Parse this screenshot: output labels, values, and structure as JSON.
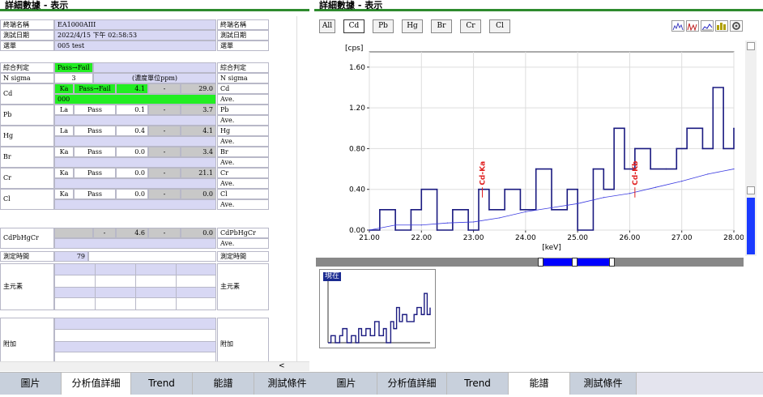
{
  "left_panel": {
    "title": "詳細數據 - 表示"
  },
  "right_panel": {
    "title": "詳細數據 - 表示"
  },
  "info": {
    "terminal_label": "終端名稱",
    "terminal_value": "EA1000AIII",
    "date_label": "測試日期",
    "date_value": "2022/4/15 下午 02:58:53",
    "list_label": "選單",
    "list_value": "005 test"
  },
  "summary": {
    "label": "綜合判定",
    "value": "Pass→Fail",
    "right_label": "綜合判定"
  },
  "nsigma": {
    "label": "N sigma",
    "value": "3",
    "unit": "(濃度單位ppm)",
    "right_label": "N sigma"
  },
  "ave_label": "Ave.",
  "elements": [
    {
      "name": "Cd",
      "line": "Ka",
      "result": "Pass→Fail",
      "value": "4.1",
      "dash": "-",
      "limit": "29.0",
      "extra": "000"
    },
    {
      "name": "Pb",
      "line": "La",
      "result": "Pass",
      "value": "0.1",
      "dash": "-",
      "limit": "3.7"
    },
    {
      "name": "Hg",
      "line": "La",
      "result": "Pass",
      "value": "0.4",
      "dash": "-",
      "limit": "4.1"
    },
    {
      "name": "Br",
      "line": "Ka",
      "result": "Pass",
      "value": "0.0",
      "dash": "-",
      "limit": "3.4"
    },
    {
      "name": "Cr",
      "line": "Ka",
      "result": "Pass",
      "value": "0.0",
      "dash": "-",
      "limit": "21.1"
    },
    {
      "name": "Cl",
      "line": "Ka",
      "result": "Pass",
      "value": "0.0",
      "dash": "-",
      "limit": "0.0"
    }
  ],
  "cdpbhgcr": {
    "name": "CdPbHgCr",
    "dash": "-",
    "value": "4.6",
    "dash2": "-",
    "limit": "0.0"
  },
  "measure": {
    "label": "測定時間",
    "value": "79",
    "right_label": "測定時間"
  },
  "main_elem": {
    "label": "主元素",
    "right_label": "主元素"
  },
  "add": {
    "label": "附加",
    "right_label": "附加"
  },
  "element_buttons": [
    "All",
    "Cd",
    "Pb",
    "Hg",
    "Br",
    "Cr",
    "Cl"
  ],
  "tabs_left": [
    "圖片",
    "分析值詳細",
    "Trend",
    "能譜",
    "測試條件"
  ],
  "tabs_right": [
    "圖片",
    "分析值詳細",
    "Trend",
    "能譜",
    "測試條件"
  ],
  "thumbnail": {
    "label": "現在"
  },
  "colors": {
    "title_line": "#2e8b2e",
    "spectrum": "#1a1a80",
    "average": "#3a3ae0",
    "marker": "#e02020",
    "overview_sel": "#0000ff"
  },
  "chart_data": {
    "type": "line",
    "ylabel": "[cps]",
    "xlabel": "[keV]",
    "xlim": [
      21.0,
      28.0
    ],
    "ylim": [
      0.0,
      1.75
    ],
    "x_ticks": [
      "21.00",
      "22.00",
      "23.00",
      "24.00",
      "25.00",
      "26.00",
      "27.00",
      "28.00"
    ],
    "y_ticks": [
      "0.00",
      "0.40",
      "0.80",
      "1.20",
      "1.60"
    ],
    "markers": [
      {
        "label": "Cd-Ka",
        "x": 23.17
      },
      {
        "label": "Cd-Kb",
        "x": 26.1
      }
    ],
    "series": [
      {
        "values": [
          [
            21.0,
            0.0
          ],
          [
            21.2,
            0.2
          ],
          [
            21.5,
            0.0
          ],
          [
            21.8,
            0.2
          ],
          [
            22.0,
            0.4
          ],
          [
            22.3,
            0.0
          ],
          [
            22.6,
            0.2
          ],
          [
            22.9,
            0.0
          ],
          [
            23.1,
            0.4
          ],
          [
            23.3,
            0.2
          ],
          [
            23.6,
            0.4
          ],
          [
            23.9,
            0.2
          ],
          [
            24.2,
            0.6
          ],
          [
            24.5,
            0.2
          ],
          [
            24.8,
            0.4
          ],
          [
            25.0,
            0.0
          ],
          [
            25.3,
            0.6
          ],
          [
            25.5,
            0.4
          ],
          [
            25.7,
            1.0
          ],
          [
            25.9,
            0.6
          ],
          [
            26.1,
            0.8
          ],
          [
            26.4,
            0.6
          ],
          [
            26.7,
            0.6
          ],
          [
            26.9,
            0.8
          ],
          [
            27.1,
            1.0
          ],
          [
            27.4,
            0.8
          ],
          [
            27.6,
            1.4
          ],
          [
            27.8,
            0.8
          ],
          [
            28.0,
            1.0
          ]
        ]
      },
      {
        "values": [
          [
            21.0,
            0.0
          ],
          [
            21.5,
            0.05
          ],
          [
            22.0,
            0.05
          ],
          [
            22.5,
            0.07
          ],
          [
            23.0,
            0.08
          ],
          [
            23.5,
            0.12
          ],
          [
            24.0,
            0.18
          ],
          [
            24.5,
            0.22
          ],
          [
            25.0,
            0.26
          ],
          [
            25.5,
            0.32
          ],
          [
            26.0,
            0.36
          ],
          [
            26.5,
            0.42
          ],
          [
            27.0,
            0.48
          ],
          [
            27.5,
            0.55
          ],
          [
            28.0,
            0.6
          ]
        ]
      }
    ]
  }
}
